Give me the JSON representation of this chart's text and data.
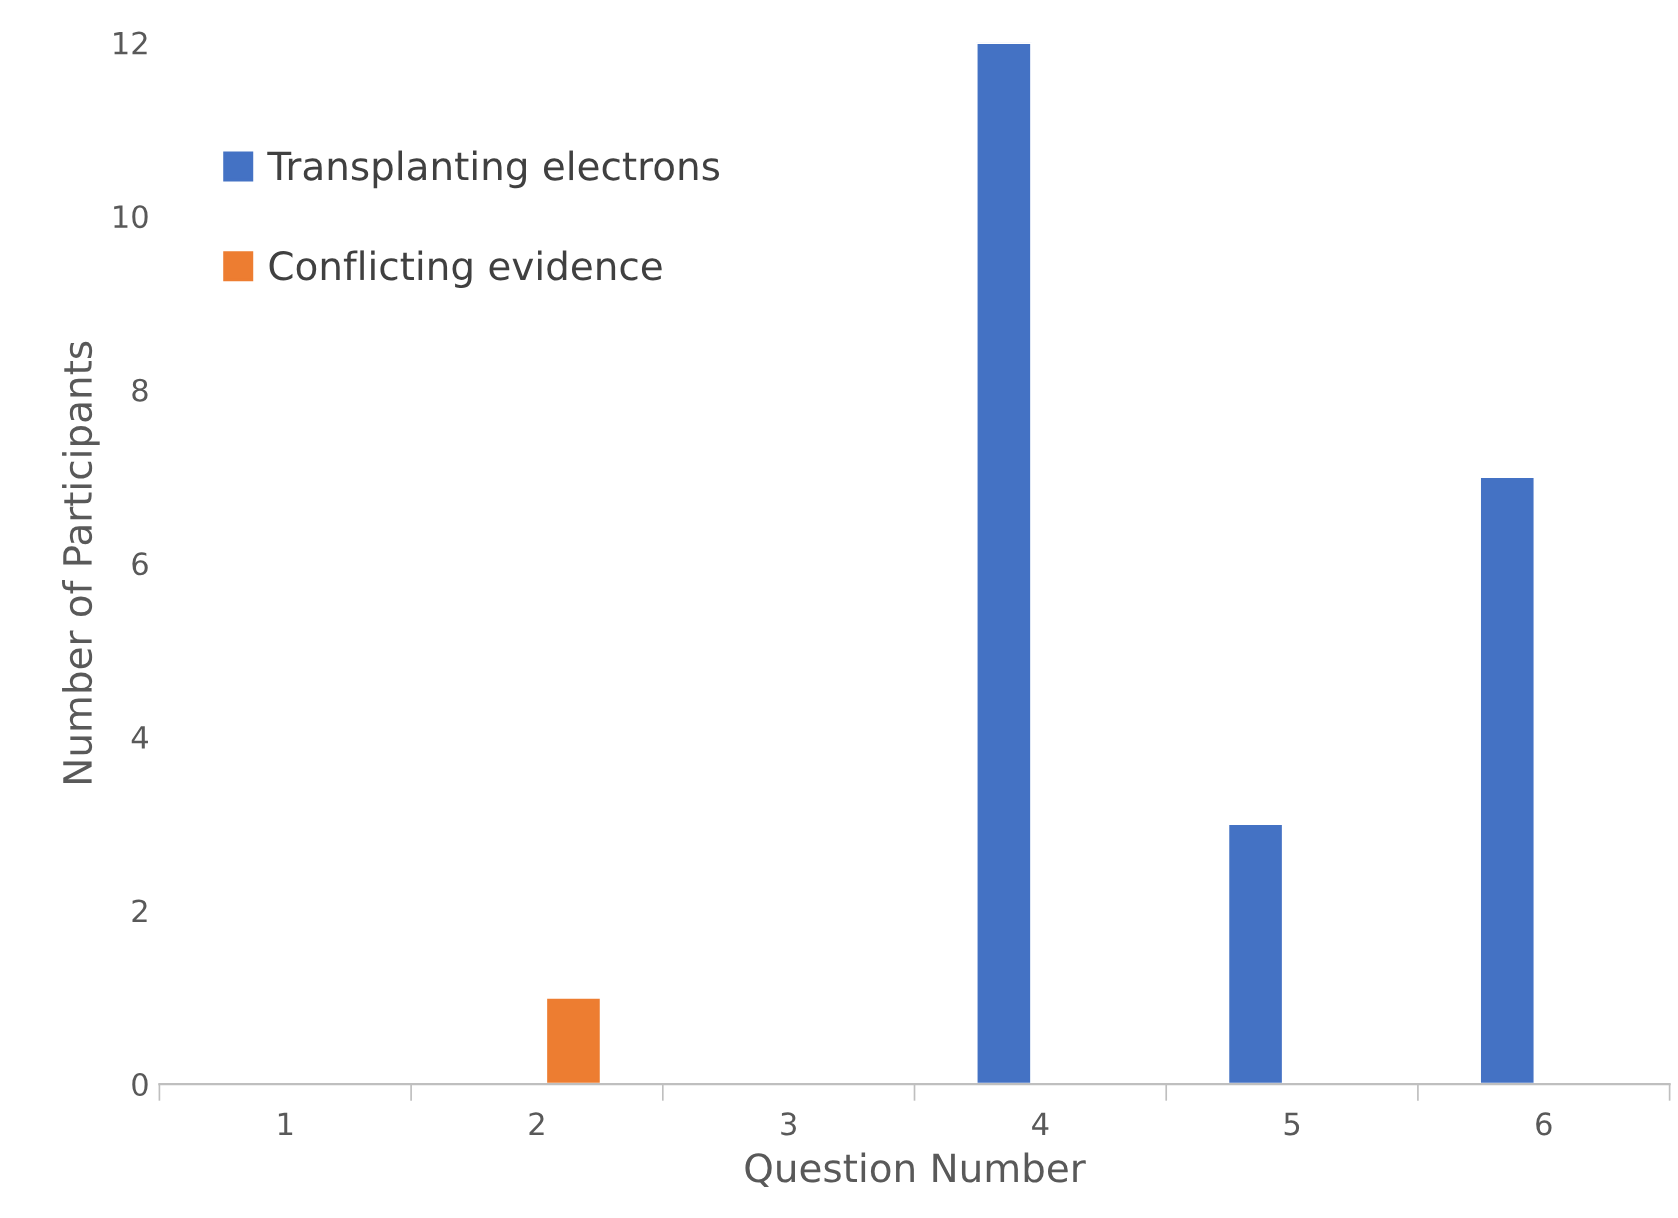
{
  "chart_data": {
    "type": "bar",
    "xlabel": "Question Number",
    "ylabel": "Number of Participants",
    "categories": [
      "1",
      "2",
      "3",
      "4",
      "5",
      "6"
    ],
    "series": [
      {
        "name": "Transplanting electrons",
        "color": "#4472c4",
        "values": [
          null,
          null,
          null,
          12,
          3,
          7
        ]
      },
      {
        "name": "Conflicting evidence",
        "color": "#ed7d31",
        "values": [
          null,
          1,
          null,
          null,
          null,
          null
        ]
      }
    ],
    "ylim": [
      0,
      12
    ],
    "yticks": [
      0,
      2,
      4,
      6,
      8,
      10,
      12
    ],
    "grid": false,
    "legend": "top left"
  }
}
